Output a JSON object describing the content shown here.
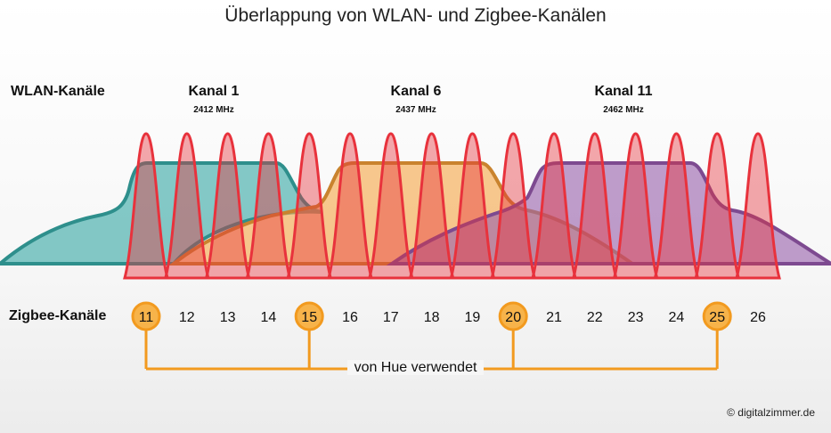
{
  "title": "Überlappung von WLAN- und Zigbee-Kanälen",
  "wlan_label": "WLAN-Kanäle",
  "zigbee_label": "Zigbee-Kanäle",
  "wlan_channels": [
    {
      "name": "Kanal 1",
      "freq": "2412 MHz",
      "color": "#3aa9a6",
      "stroke": "#2e8f8c"
    },
    {
      "name": "Kanal 6",
      "freq": "2437 MHz",
      "color": "#f5a84a",
      "stroke": "#c9832e"
    },
    {
      "name": "Kanal 11",
      "freq": "2462 MHz",
      "color": "#9a63ad",
      "stroke": "#7d4a90"
    }
  ],
  "zigbee_channels": [
    "11",
    "12",
    "13",
    "14",
    "15",
    "16",
    "17",
    "18",
    "19",
    "20",
    "21",
    "22",
    "23",
    "24",
    "25",
    "26"
  ],
  "hue_channels": [
    "11",
    "15",
    "20",
    "25"
  ],
  "hue_label": "von Hue verwendet",
  "zigbee_color": "#e8323c",
  "hue_color": "#f29a1f",
  "copyright": "© digitalzimmer.de"
}
